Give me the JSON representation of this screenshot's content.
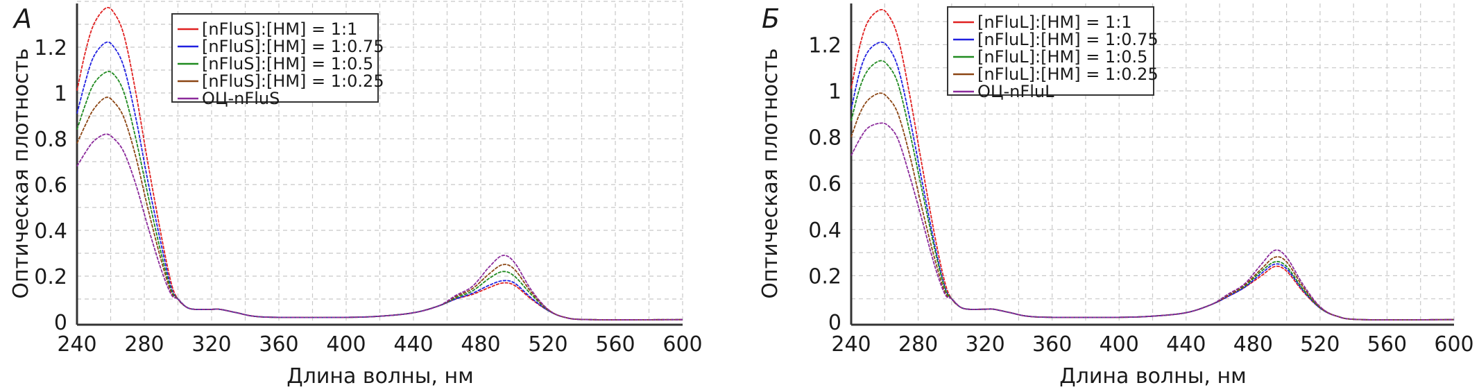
{
  "chart_data": [
    {
      "type": "line",
      "panel_label": "А",
      "xlabel": "Длина волны, нм",
      "ylabel": "Оптическая плотность",
      "xlim": [
        240,
        600
      ],
      "ylim": [
        0,
        1.4
      ],
      "xticks": [
        "240",
        "280",
        "320",
        "360",
        "400",
        "440",
        "480",
        "520",
        "560",
        "600"
      ],
      "yticks": [
        "0",
        "0.2",
        "0.4",
        "0.6",
        "0.8",
        "1",
        "1.2"
      ],
      "grid": true,
      "legend_position": "top-center",
      "x": [
        240,
        245,
        250,
        257,
        262,
        268,
        275,
        282,
        290,
        296,
        300,
        305,
        310,
        320,
        325,
        335,
        345,
        360,
        400,
        420,
        440,
        455,
        465,
        475,
        485,
        493,
        500,
        510,
        520,
        530,
        545,
        600
      ],
      "series": [
        {
          "name": "[nFluS]:[HM] = 1:1",
          "color": "#e02020",
          "values": [
            1.01,
            1.18,
            1.3,
            1.37,
            1.35,
            1.25,
            1.0,
            0.7,
            0.38,
            0.17,
            0.1,
            0.065,
            0.055,
            0.055,
            0.055,
            0.04,
            0.025,
            0.02,
            0.02,
            0.025,
            0.04,
            0.07,
            0.1,
            0.12,
            0.15,
            0.17,
            0.16,
            0.1,
            0.05,
            0.02,
            0.01,
            0.01
          ]
        },
        {
          "name": "[nFluS]:[HM] = 1:0.75",
          "color": "#2020e0",
          "values": [
            0.91,
            1.05,
            1.16,
            1.22,
            1.2,
            1.11,
            0.89,
            0.62,
            0.34,
            0.15,
            0.1,
            0.065,
            0.055,
            0.055,
            0.055,
            0.04,
            0.025,
            0.02,
            0.02,
            0.025,
            0.04,
            0.07,
            0.1,
            0.125,
            0.16,
            0.18,
            0.17,
            0.105,
            0.05,
            0.02,
            0.01,
            0.01
          ]
        },
        {
          "name": "[nFluS]:[HM] = 1:0.5",
          "color": "#1f8a1f",
          "values": [
            0.84,
            0.95,
            1.04,
            1.09,
            1.08,
            1.0,
            0.8,
            0.56,
            0.3,
            0.14,
            0.1,
            0.065,
            0.055,
            0.055,
            0.055,
            0.04,
            0.025,
            0.02,
            0.02,
            0.025,
            0.04,
            0.07,
            0.105,
            0.135,
            0.19,
            0.22,
            0.2,
            0.12,
            0.052,
            0.02,
            0.01,
            0.01
          ]
        },
        {
          "name": "[nFluS]:[HM] = 1:0.25",
          "color": "#8b4513",
          "values": [
            0.78,
            0.86,
            0.93,
            0.98,
            0.96,
            0.89,
            0.72,
            0.5,
            0.27,
            0.13,
            0.1,
            0.065,
            0.055,
            0.055,
            0.055,
            0.04,
            0.025,
            0.02,
            0.02,
            0.025,
            0.04,
            0.07,
            0.11,
            0.145,
            0.21,
            0.25,
            0.23,
            0.13,
            0.054,
            0.02,
            0.01,
            0.01
          ]
        },
        {
          "name": "ОЦ-nFluS",
          "color": "#8b2a9b",
          "values": [
            0.68,
            0.74,
            0.79,
            0.82,
            0.8,
            0.74,
            0.6,
            0.42,
            0.23,
            0.12,
            0.1,
            0.065,
            0.055,
            0.055,
            0.055,
            0.04,
            0.025,
            0.02,
            0.02,
            0.025,
            0.04,
            0.07,
            0.115,
            0.155,
            0.24,
            0.29,
            0.26,
            0.14,
            0.055,
            0.02,
            0.01,
            0.01
          ]
        }
      ]
    },
    {
      "type": "line",
      "panel_label": "Б",
      "xlabel": "Длина волны, нм",
      "ylabel": "Оптическая плотность",
      "xlim": [
        240,
        600
      ],
      "ylim": [
        0,
        1.4
      ],
      "xticks": [
        "240",
        "280",
        "320",
        "360",
        "400",
        "440",
        "480",
        "520",
        "560",
        "600"
      ],
      "yticks": [
        "0",
        "0.2",
        "0.4",
        "0.6",
        "0.8",
        "1",
        "1.2"
      ],
      "grid": true,
      "legend_position": "top-center",
      "x": [
        240,
        245,
        250,
        257,
        262,
        268,
        275,
        282,
        290,
        296,
        300,
        305,
        310,
        320,
        325,
        335,
        345,
        360,
        400,
        420,
        440,
        455,
        465,
        475,
        485,
        493,
        500,
        510,
        520,
        530,
        545,
        600
      ],
      "series": [
        {
          "name": "[nFluL]:[HM] = 1:1",
          "color": "#e02020",
          "values": [
            1.01,
            1.19,
            1.3,
            1.35,
            1.33,
            1.23,
            0.98,
            0.69,
            0.37,
            0.17,
            0.1,
            0.065,
            0.055,
            0.055,
            0.055,
            0.04,
            0.025,
            0.02,
            0.02,
            0.025,
            0.04,
            0.075,
            0.11,
            0.15,
            0.2,
            0.24,
            0.22,
            0.13,
            0.06,
            0.025,
            0.01,
            0.01
          ]
        },
        {
          "name": "[nFluL]:[HM] = 1:0.75",
          "color": "#2020e0",
          "values": [
            0.92,
            1.08,
            1.17,
            1.21,
            1.19,
            1.1,
            0.88,
            0.62,
            0.33,
            0.15,
            0.1,
            0.065,
            0.055,
            0.055,
            0.055,
            0.04,
            0.025,
            0.02,
            0.02,
            0.025,
            0.04,
            0.075,
            0.11,
            0.15,
            0.21,
            0.25,
            0.23,
            0.135,
            0.06,
            0.025,
            0.01,
            0.01
          ]
        },
        {
          "name": "[nFluL]:[HM] = 1:0.5",
          "color": "#1f8a1f",
          "values": [
            0.87,
            1.01,
            1.09,
            1.13,
            1.11,
            1.03,
            0.82,
            0.58,
            0.31,
            0.145,
            0.1,
            0.065,
            0.055,
            0.055,
            0.055,
            0.04,
            0.025,
            0.02,
            0.02,
            0.025,
            0.04,
            0.075,
            0.115,
            0.155,
            0.22,
            0.26,
            0.24,
            0.14,
            0.062,
            0.025,
            0.01,
            0.01
          ]
        },
        {
          "name": "[nFluL]:[HM] = 1:0.25",
          "color": "#8b4513",
          "values": [
            0.8,
            0.9,
            0.96,
            0.99,
            0.97,
            0.9,
            0.72,
            0.5,
            0.27,
            0.13,
            0.1,
            0.065,
            0.055,
            0.055,
            0.055,
            0.04,
            0.025,
            0.02,
            0.02,
            0.025,
            0.04,
            0.075,
            0.115,
            0.16,
            0.23,
            0.28,
            0.26,
            0.15,
            0.064,
            0.025,
            0.01,
            0.01
          ]
        },
        {
          "name": "ОЦ-nFluL",
          "color": "#8b2a9b",
          "values": [
            0.72,
            0.79,
            0.84,
            0.86,
            0.85,
            0.79,
            0.63,
            0.45,
            0.24,
            0.12,
            0.1,
            0.065,
            0.055,
            0.055,
            0.055,
            0.04,
            0.025,
            0.02,
            0.02,
            0.025,
            0.04,
            0.075,
            0.12,
            0.165,
            0.25,
            0.31,
            0.28,
            0.16,
            0.066,
            0.025,
            0.01,
            0.01
          ]
        }
      ]
    }
  ]
}
